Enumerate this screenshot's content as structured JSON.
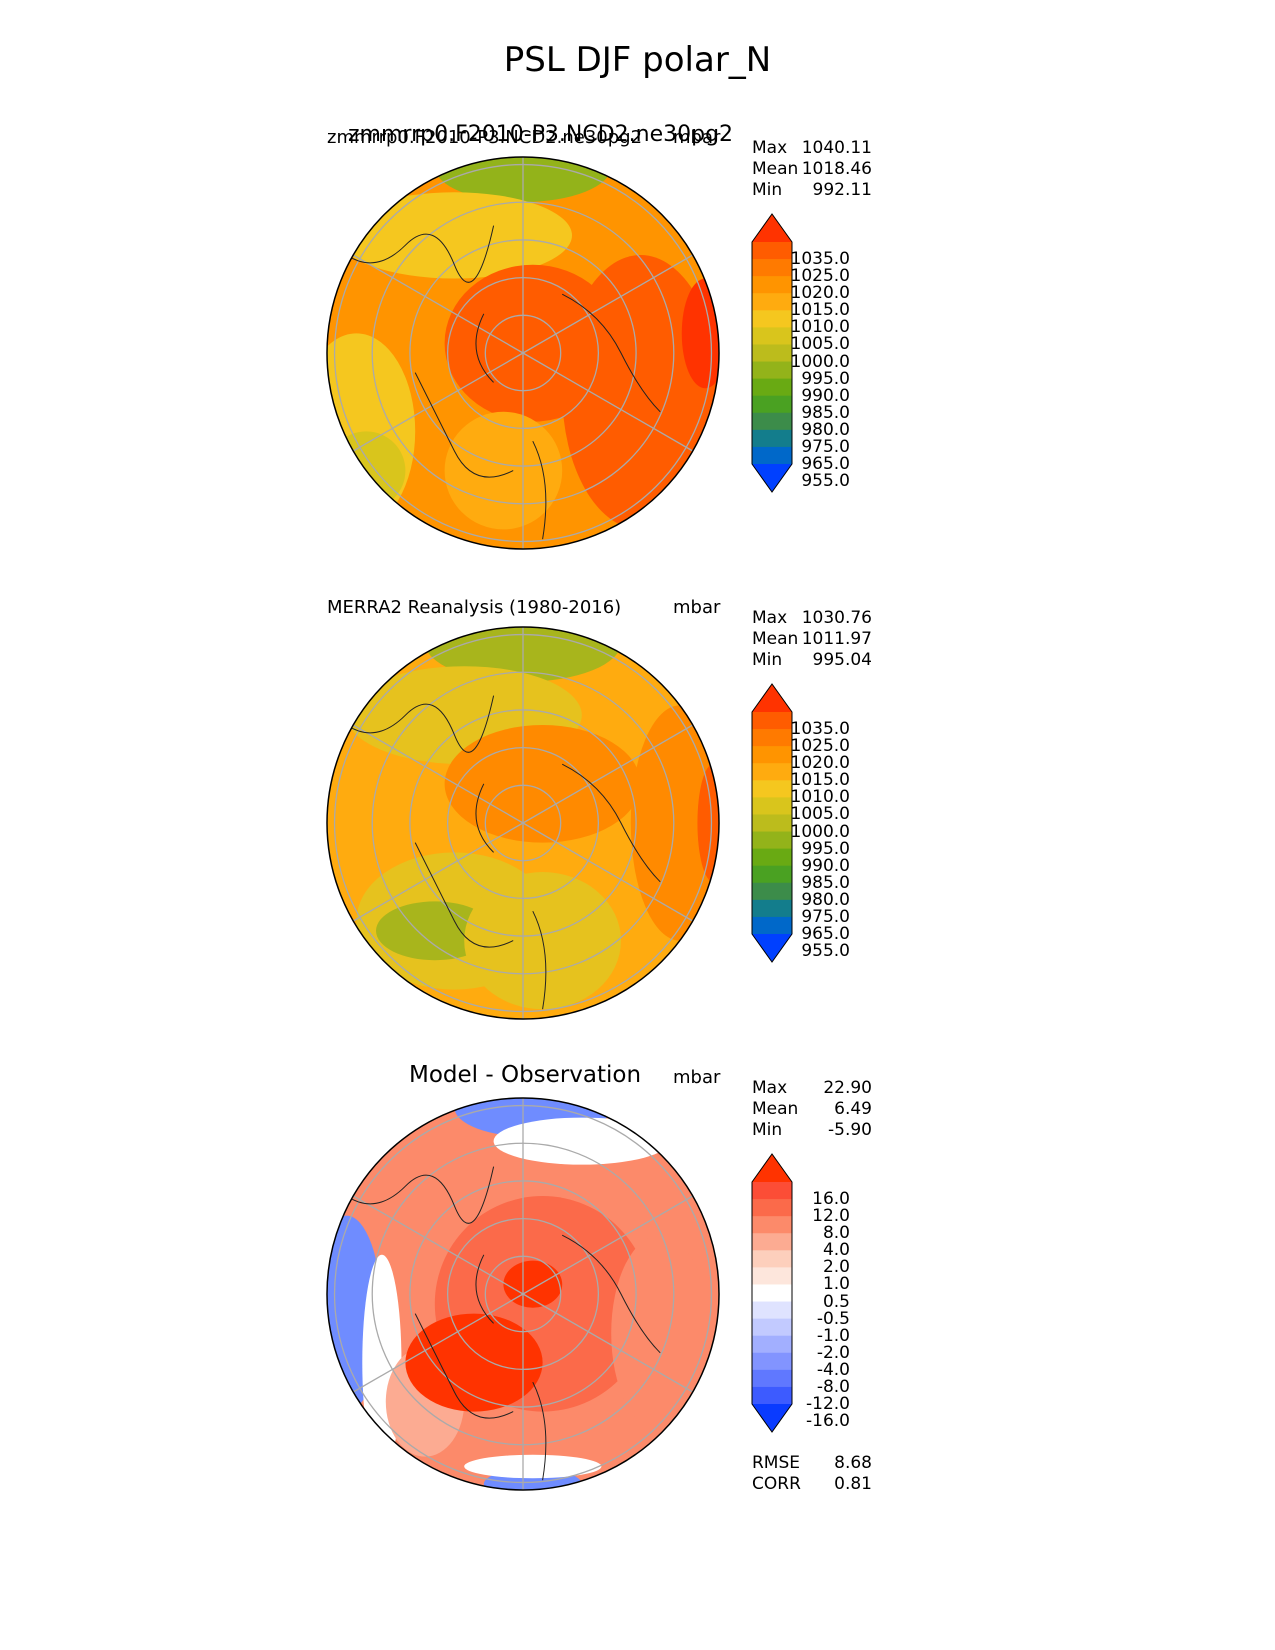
{
  "figure": {
    "title": "PSL DJF polar_N"
  },
  "chart_data": [
    {
      "type": "heatmap",
      "projection": "north-polar-stereographic",
      "title": "",
      "left_label": "zmmrrp0.F2010-P3.NCD2.ne30pg2",
      "left_label_overlap": "zmmrrp0.F2010-P3.NCD2.ne30pg2",
      "right_label": "mbar",
      "stats": {
        "max_label": "Max",
        "max": "1040.11",
        "mean_label": "Mean",
        "mean": "1018.46",
        "min_label": "Min",
        "min": "992.11"
      },
      "colorbar": {
        "extend": "both",
        "ticks": [
          "1035.0",
          "1025.0",
          "1020.0",
          "1015.0",
          "1010.0",
          "1005.0",
          "1000.0",
          "995.0",
          "990.0",
          "985.0",
          "980.0",
          "975.0",
          "965.0",
          "955.0"
        ],
        "colors": [
          "#ff3300",
          "#ff5c00",
          "#ff7a00",
          "#ff9400",
          "#ffab0f",
          "#f5c71f",
          "#d9c51c",
          "#bcbc1c",
          "#93b31a",
          "#69aa13",
          "#4aa122",
          "#3c8c4a",
          "#137d8c",
          "#0068c9",
          "#0040ff"
        ]
      },
      "field_colors": {
        "low": "#93b31a",
        "mid": "#f5c71f",
        "high": "#ff5c00",
        "max": "#ff3300"
      }
    },
    {
      "type": "heatmap",
      "projection": "north-polar-stereographic",
      "title": "",
      "left_label": "MERRA2 Reanalysis (1980-2016)",
      "right_label": "mbar",
      "stats": {
        "max_label": "Max",
        "max": "1030.76",
        "mean_label": "Mean",
        "mean": "1011.97",
        "min_label": "Min",
        "min": "995.04"
      },
      "colorbar": {
        "extend": "both",
        "ticks": [
          "1035.0",
          "1025.0",
          "1020.0",
          "1015.0",
          "1010.0",
          "1005.0",
          "1000.0",
          "995.0",
          "990.0",
          "985.0",
          "980.0",
          "975.0",
          "965.0",
          "955.0"
        ],
        "colors": [
          "#ff3300",
          "#ff5c00",
          "#ff7a00",
          "#ff9400",
          "#ffab0f",
          "#f5c71f",
          "#d9c51c",
          "#bcbc1c",
          "#93b31a",
          "#69aa13",
          "#4aa122",
          "#3c8c4a",
          "#137d8c",
          "#0068c9",
          "#0040ff"
        ]
      },
      "field_colors": {
        "low": "#a8b51c",
        "mid": "#e6c21e",
        "high": "#ff8a00",
        "max": "#ff5c00"
      }
    },
    {
      "type": "heatmap",
      "projection": "north-polar-stereographic",
      "title": "Model - Observation",
      "left_label": "",
      "right_label": "mbar",
      "stats": {
        "max_label": "Max",
        "max": "22.90",
        "mean_label": "Mean",
        "mean": "6.49",
        "min_label": "Min",
        "min": "-5.90"
      },
      "metrics": {
        "rmse_label": "RMSE",
        "rmse": "8.68",
        "corr_label": "CORR",
        "corr": "0.81"
      },
      "colorbar": {
        "extend": "both",
        "ticks": [
          "16.0",
          "12.0",
          "8.0",
          "4.0",
          "2.0",
          "1.0",
          "0.5",
          "-0.5",
          "-1.0",
          "-2.0",
          "-4.0",
          "-8.0",
          "-12.0",
          "-16.0"
        ],
        "colors": [
          "#ff3300",
          "#fc4d36",
          "#fb6a4a",
          "#fc8a6a",
          "#fcab92",
          "#fdcfbc",
          "#fde6dc",
          "#ffffff",
          "#dfe3ff",
          "#c2caff",
          "#a2afff",
          "#8294ff",
          "#6078ff",
          "#3d5bff",
          "#0a3bff"
        ]
      },
      "field_colors": {
        "neg": "#6f8cff",
        "negl": "#c7d0ff",
        "pos": "#fc8a6a",
        "posh": "#ff3300",
        "zero": "#ffffff"
      }
    }
  ]
}
